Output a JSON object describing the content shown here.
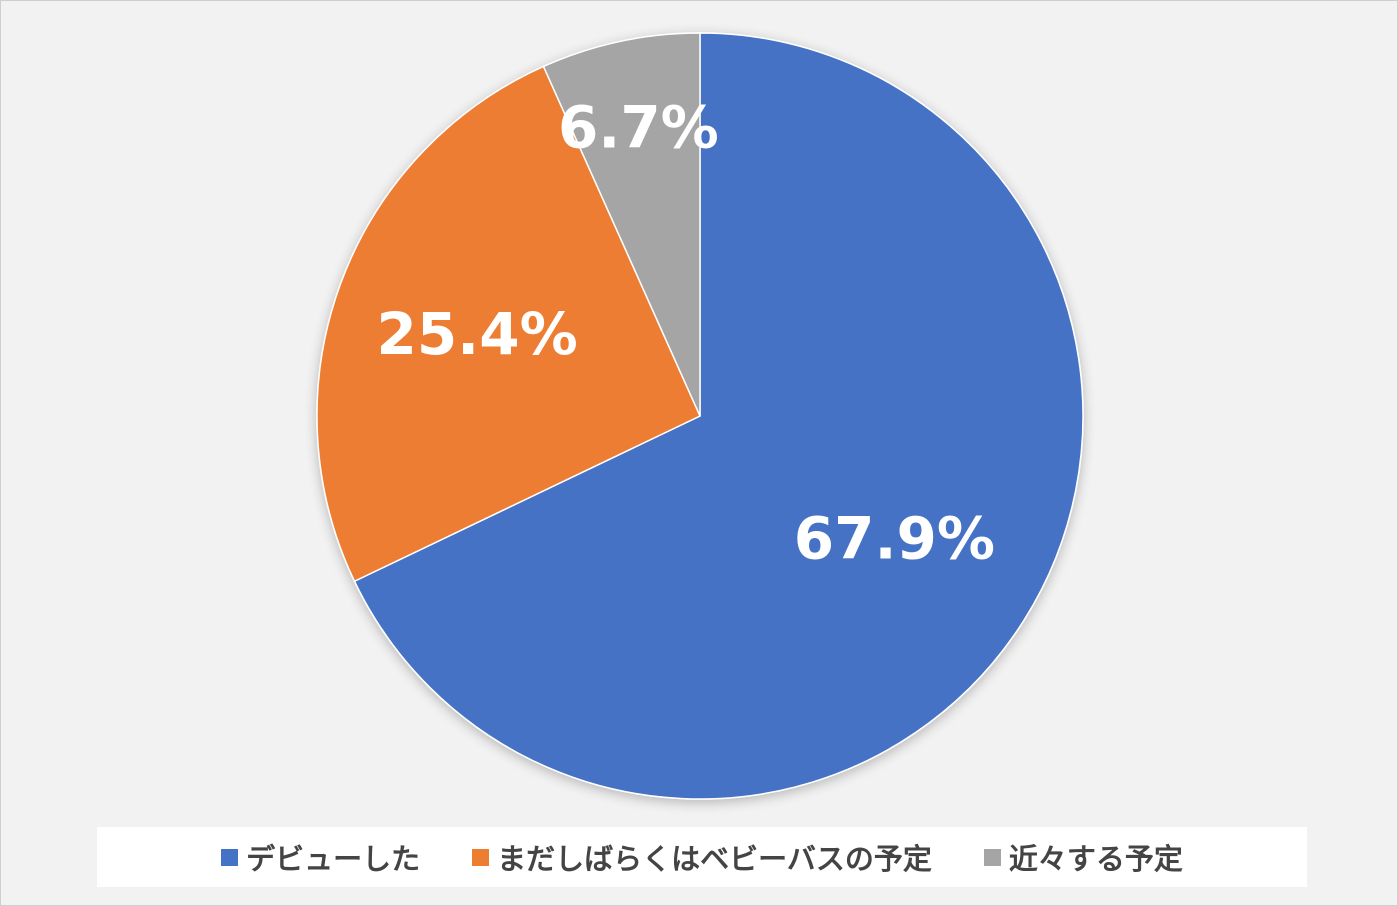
{
  "chart_data": {
    "type": "pie",
    "title": "",
    "slices": [
      {
        "label": "デビューした",
        "value": 67.9,
        "display": "67.9%",
        "color": "#4472C4"
      },
      {
        "label": "まだしばらくはベビーバスの予定",
        "value": 25.4,
        "display": "25.4%",
        "color": "#ED7D31"
      },
      {
        "label": "近々する予定",
        "value": 6.7,
        "display": "6.7%",
        "color": "#A5A5A5"
      }
    ],
    "legend_position": "bottom",
    "start_angle": "12 o'clock",
    "direction": "clockwise"
  }
}
